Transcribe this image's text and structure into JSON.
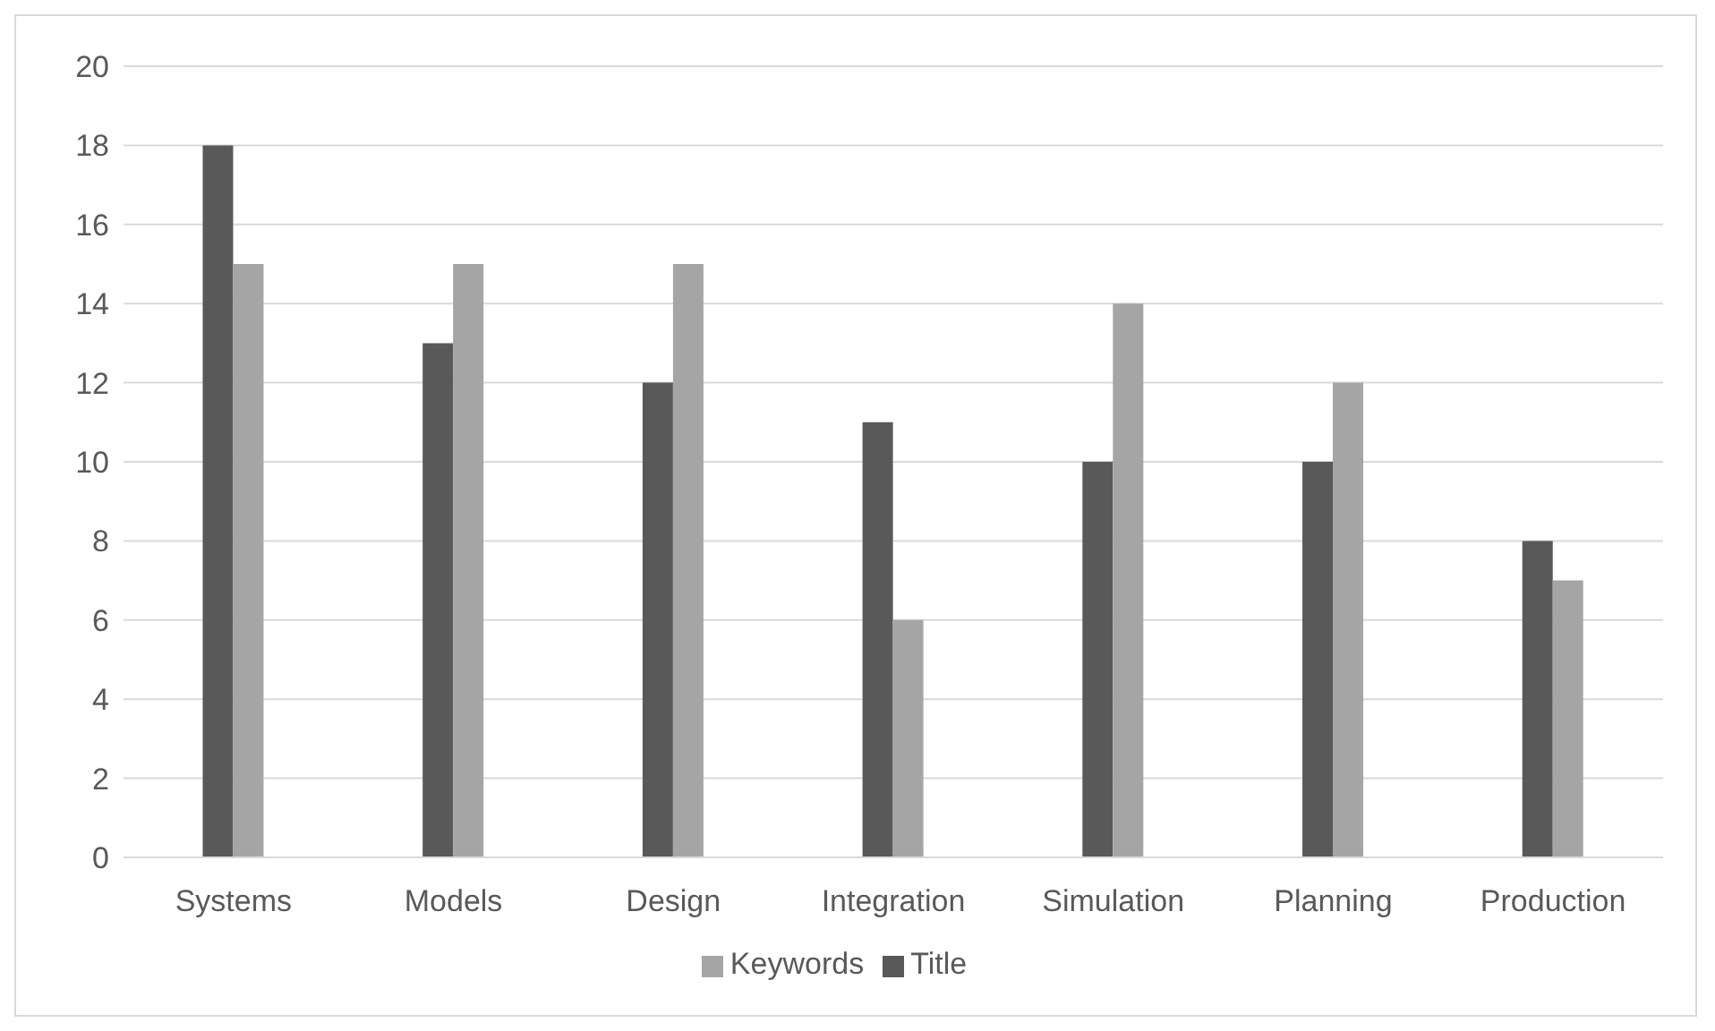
{
  "chart_data": {
    "type": "bar",
    "categories": [
      "Systems",
      "Models",
      "Design",
      "Integration",
      "Simulation",
      "Planning",
      "Production"
    ],
    "series": [
      {
        "name": "Title",
        "color": "#595959",
        "values": [
          18,
          13,
          12,
          11,
          10,
          10,
          8
        ]
      },
      {
        "name": "Keywords",
        "color": "#a5a5a5",
        "values": [
          15,
          15,
          15,
          6,
          14,
          12,
          7
        ]
      }
    ],
    "ylim": [
      0,
      20
    ],
    "yticks": [
      0,
      2,
      4,
      6,
      8,
      10,
      12,
      14,
      16,
      18,
      20
    ],
    "grid": "y",
    "legend": "bottom"
  }
}
